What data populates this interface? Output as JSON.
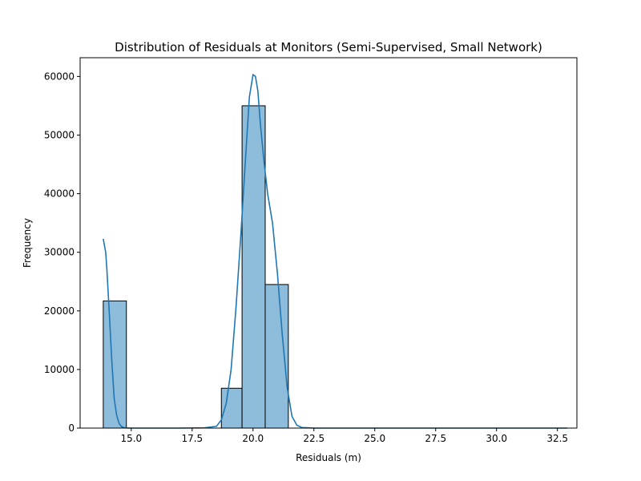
{
  "chart_data": {
    "type": "bar",
    "title": "Distribution of Residuals at Monitors (Semi-Supervised, Small Network)",
    "xlabel": "Residuals (m)",
    "ylabel": "Frequency",
    "xlim": [
      12.9,
      33.3
    ],
    "ylim": [
      0,
      63200
    ],
    "xticks": [
      15.0,
      17.5,
      20.0,
      22.5,
      25.0,
      27.5,
      30.0,
      32.5
    ],
    "xtick_labels": [
      "15.0",
      "17.5",
      "20.0",
      "22.5",
      "25.0",
      "27.5",
      "30.0",
      "32.5"
    ],
    "yticks": [
      0,
      10000,
      20000,
      30000,
      40000,
      50000,
      60000
    ],
    "ytick_labels": [
      "0",
      "10000",
      "20000",
      "30000",
      "40000",
      "50000",
      "60000"
    ],
    "grid": false,
    "bars": [
      {
        "x0": 13.85,
        "x1": 14.8,
        "value": 21700
      },
      {
        "x0": 18.7,
        "x1": 19.55,
        "value": 6800
      },
      {
        "x0": 19.55,
        "x1": 20.5,
        "value": 55000
      },
      {
        "x0": 20.5,
        "x1": 21.45,
        "value": 24500
      }
    ],
    "kde": {
      "x": [
        13.85,
        13.95,
        14.0,
        14.1,
        14.2,
        14.3,
        14.4,
        14.5,
        14.6,
        14.7,
        14.8,
        15.0,
        16.0,
        17.0,
        18.0,
        18.5,
        18.7,
        18.9,
        19.1,
        19.3,
        19.5,
        19.7,
        19.85,
        20.0,
        20.1,
        20.2,
        20.3,
        20.45,
        20.6,
        20.8,
        21.0,
        21.2,
        21.4,
        21.6,
        21.8,
        22.0,
        22.5,
        25.0,
        27.5,
        30.0,
        32.9
      ],
      "y": [
        32300,
        30000,
        27000,
        19500,
        11500,
        5000,
        2200,
        800,
        250,
        80,
        20,
        0,
        0,
        0,
        40,
        300,
        1400,
        4200,
        10000,
        20500,
        33000,
        46500,
        56500,
        60300,
        60000,
        57500,
        52000,
        45500,
        40000,
        35000,
        26500,
        16000,
        7000,
        2000,
        500,
        100,
        0,
        0,
        0,
        0,
        0
      ],
      "color": "#1f77b4"
    },
    "bar_fill": "#8ebcdb",
    "bar_edge": "#000000"
  }
}
